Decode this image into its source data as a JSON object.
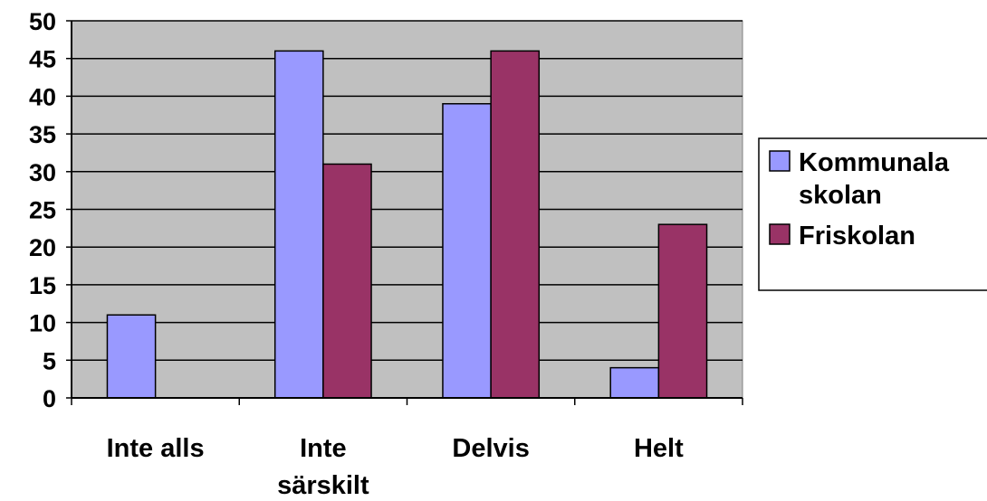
{
  "chart_data": {
    "type": "bar",
    "categories": [
      "Inte alls",
      "Inte särskilt",
      "Delvis",
      "Helt"
    ],
    "category_lines": [
      [
        "Inte alls"
      ],
      [
        "Inte",
        "särskilt"
      ],
      [
        "Delvis"
      ],
      [
        "Helt"
      ]
    ],
    "series": [
      {
        "name": "Kommunala skolan",
        "legend_lines": [
          "Kommunala",
          "skolan"
        ],
        "values": [
          11,
          46,
          39,
          4
        ],
        "color": "#9999FF"
      },
      {
        "name": "Friskolan",
        "legend_lines": [
          "Friskolan"
        ],
        "values": [
          0,
          31,
          46,
          23
        ],
        "color": "#993366"
      }
    ],
    "ylim": [
      0,
      50
    ],
    "yticks": [
      0,
      5,
      10,
      15,
      20,
      25,
      30,
      35,
      40,
      45,
      50
    ],
    "grid": true,
    "plot_background": "#C0C0C0",
    "legend_position": "right"
  }
}
